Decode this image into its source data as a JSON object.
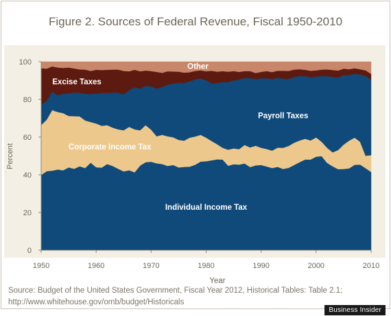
{
  "title": "Figure 2. Sources of Federal Revenue, Fiscal 1950-2010",
  "source_lines": [
    "Source: Budget of the United States Government, Fiscal Year 2012, Historical Tables: Table 2.1;",
    "http://www.whitehouse.gov/omb/budget/Historicals"
  ],
  "watermark": "Business Insider",
  "chart_data": {
    "type": "area",
    "stacked": true,
    "xlabel": "Year",
    "ylabel": "Percent",
    "xlim": [
      1950,
      2010
    ],
    "ylim": [
      0,
      100
    ],
    "x_ticks": [
      1950,
      1960,
      1970,
      1980,
      1990,
      2000,
      2010
    ],
    "y_ticks": [
      0,
      20,
      40,
      60,
      80,
      100
    ],
    "grid": false,
    "legend": "labels inside areas",
    "x": [
      1950,
      1951,
      1952,
      1953,
      1954,
      1955,
      1956,
      1957,
      1958,
      1959,
      1960,
      1961,
      1962,
      1963,
      1964,
      1965,
      1966,
      1967,
      1968,
      1969,
      1970,
      1971,
      1972,
      1973,
      1974,
      1975,
      1976,
      1977,
      1978,
      1979,
      1980,
      1981,
      1982,
      1983,
      1984,
      1985,
      1986,
      1987,
      1988,
      1989,
      1990,
      1991,
      1992,
      1993,
      1994,
      1995,
      1996,
      1997,
      1998,
      1999,
      2000,
      2001,
      2002,
      2003,
      2004,
      2005,
      2006,
      2007,
      2008,
      2009,
      2010
    ],
    "series": [
      {
        "name": "Individual Income Tax",
        "color": "#0f4a7a",
        "values": [
          39.9,
          41.9,
          42.2,
          42.8,
          42.4,
          43.9,
          43.2,
          44.5,
          43.6,
          46.4,
          44.0,
          43.8,
          45.7,
          44.7,
          43.2,
          41.8,
          42.4,
          41.3,
          44.9,
          46.7,
          46.9,
          46.1,
          45.7,
          44.7,
          45.2,
          43.9,
          44.2,
          44.3,
          45.3,
          47.0,
          47.2,
          47.7,
          48.2,
          48.1,
          44.8,
          45.6,
          45.4,
          46.0,
          44.1,
          45.0,
          45.2,
          44.4,
          43.6,
          44.2,
          43.1,
          43.7,
          45.2,
          46.7,
          48.1,
          48.1,
          49.6,
          49.9,
          46.3,
          44.5,
          43.0,
          43.1,
          43.4,
          45.3,
          45.4,
          43.5,
          41.5
        ]
      },
      {
        "name": "Corporate Income Tax",
        "color": "#edc88c",
        "values": [
          26.5,
          27.3,
          32.1,
          30.5,
          30.3,
          27.3,
          27.9,
          26.5,
          25.2,
          21.6,
          23.2,
          22.2,
          20.6,
          20.3,
          20.9,
          21.8,
          23.0,
          22.8,
          18.7,
          19.6,
          17.0,
          14.3,
          15.5,
          15.7,
          14.7,
          14.6,
          13.9,
          15.4,
          15.0,
          14.2,
          12.5,
          10.2,
          8.0,
          6.2,
          8.5,
          8.4,
          8.2,
          9.8,
          10.4,
          10.4,
          9.1,
          9.3,
          9.2,
          10.2,
          11.2,
          11.6,
          11.8,
          11.5,
          11.0,
          10.1,
          10.2,
          7.6,
          8.0,
          7.4,
          10.1,
          12.9,
          14.7,
          14.4,
          12.1,
          6.6,
          8.9
        ]
      },
      {
        "name": "Payroll Taxes",
        "color": "#0f4a7a",
        "values": [
          11.0,
          10.0,
          9.8,
          8.9,
          10.3,
          12.0,
          12.5,
          12.5,
          14.1,
          14.8,
          15.9,
          17.4,
          17.1,
          18.6,
          19.5,
          19.0,
          19.5,
          22.3,
          22.1,
          20.9,
          23.0,
          25.3,
          25.4,
          27.3,
          28.5,
          30.3,
          30.5,
          29.9,
          30.3,
          30.0,
          30.5,
          30.5,
          32.6,
          34.8,
          35.9,
          36.1,
          36.9,
          35.5,
          36.8,
          35.3,
          36.9,
          37.5,
          37.9,
          37.1,
          36.6,
          35.5,
          34.9,
          34.2,
          33.2,
          33.5,
          32.2,
          34.9,
          38.0,
          40.0,
          38.5,
          36.9,
          34.8,
          33.9,
          35.7,
          42.3,
          40.0
        ]
      },
      {
        "name": "Excise Taxes",
        "color": "#5c1a10",
        "values": [
          19.1,
          17.1,
          13.4,
          14.7,
          13.7,
          13.7,
          12.8,
          12.4,
          12.9,
          12.3,
          12.6,
          12.2,
          12.3,
          12.2,
          12.2,
          12.5,
          10.0,
          9.3,
          9.2,
          8.1,
          8.1,
          8.9,
          7.5,
          7.2,
          6.4,
          5.9,
          5.6,
          4.8,
          4.5,
          4.2,
          4.7,
          6.8,
          5.9,
          5.9,
          5.5,
          4.9,
          4.1,
          3.7,
          3.7,
          3.3,
          3.4,
          3.8,
          3.8,
          3.7,
          4.3,
          4.3,
          3.9,
          3.6,
          3.4,
          3.5,
          3.4,
          3.4,
          3.6,
          3.7,
          3.7,
          3.4,
          3.1,
          2.9,
          2.8,
          3.0,
          3.1
        ]
      },
      {
        "name": "Other",
        "color": "#c8876a",
        "values": [
          3.5,
          3.7,
          2.5,
          3.1,
          3.3,
          3.1,
          3.6,
          4.1,
          4.2,
          4.9,
          4.3,
          4.4,
          4.3,
          4.2,
          4.2,
          4.9,
          5.1,
          4.3,
          5.1,
          4.7,
          5.0,
          5.4,
          5.9,
          5.1,
          5.2,
          5.3,
          5.8,
          5.6,
          4.9,
          4.6,
          5.1,
          4.8,
          5.3,
          5.0,
          5.3,
          5.0,
          5.4,
          5.0,
          5.0,
          6.0,
          5.4,
          5.0,
          5.5,
          4.8,
          4.8,
          4.9,
          4.2,
          4.0,
          4.3,
          4.8,
          4.6,
          4.2,
          4.1,
          4.4,
          4.7,
          3.7,
          4.0,
          3.5,
          4.0,
          4.6,
          6.5
        ]
      }
    ],
    "area_labels": [
      {
        "series": "Individual Income Tax",
        "text": "Individual Income Tax",
        "at": [
          1980,
          23
        ]
      },
      {
        "series": "Corporate Income Tax",
        "text": "Corporate Income Tax",
        "at": [
          1962.5,
          55
        ]
      },
      {
        "series": "Payroll Taxes",
        "text": "Payroll Taxes",
        "at": [
          1994,
          71.5
        ]
      },
      {
        "series": "Excise Taxes",
        "text": "Excise Taxes",
        "at": [
          1956.5,
          89.5
        ]
      },
      {
        "series": "Other",
        "text": "Other",
        "at": [
          1978.5,
          97.7
        ]
      }
    ]
  }
}
